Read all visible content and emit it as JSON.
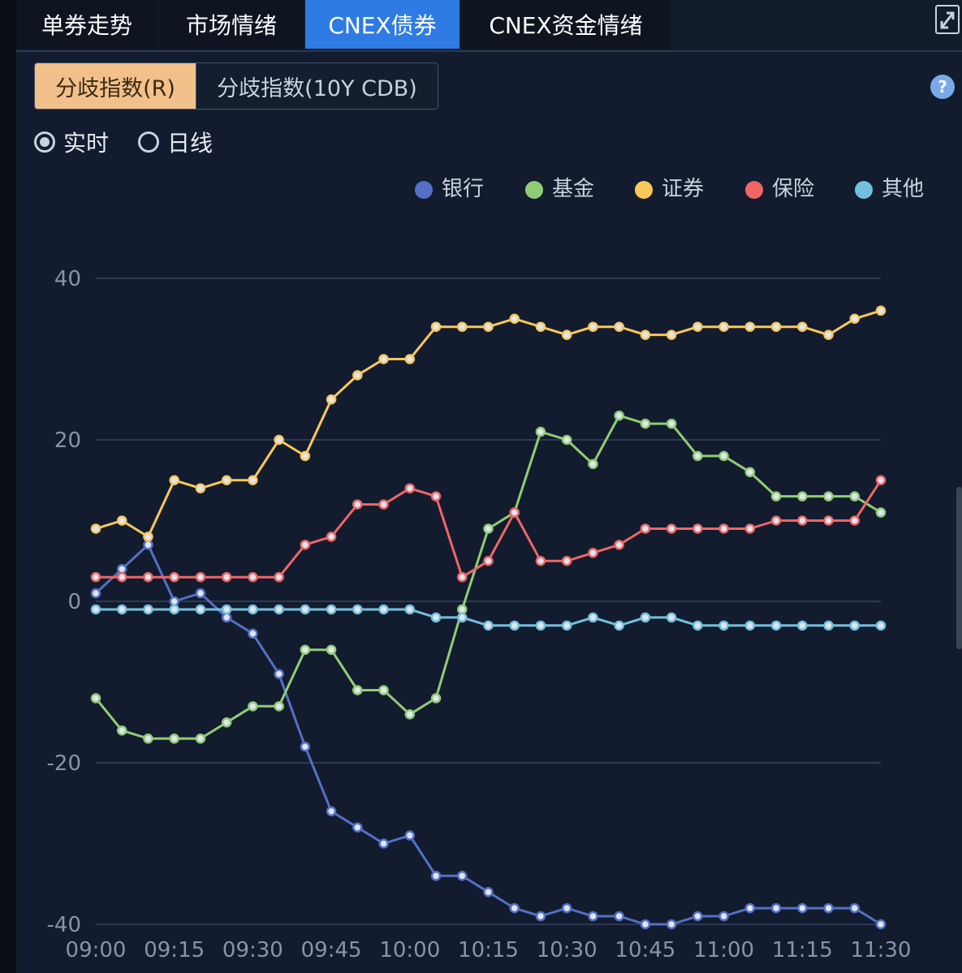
{
  "tabs": [
    {
      "label": "单券走势",
      "active": false
    },
    {
      "label": "市场情绪",
      "active": false
    },
    {
      "label": "CNEX债券",
      "active": true
    },
    {
      "label": "CNEX资金情绪",
      "active": false
    }
  ],
  "subtabs": [
    {
      "label": "分歧指数(R)",
      "active": true
    },
    {
      "label": "分歧指数(10Y CDB)",
      "active": false
    }
  ],
  "help_icon_text": "?",
  "radios": [
    {
      "label": "实时",
      "checked": true
    },
    {
      "label": "日线",
      "checked": false
    }
  ],
  "colors": {
    "accent": "#2d7be3",
    "subtab_active": "#f2c08a",
    "background": "#121c2e"
  },
  "chart_data": {
    "type": "line",
    "x": [
      "09:00",
      "09:05",
      "09:10",
      "09:15",
      "09:20",
      "09:25",
      "09:30",
      "09:35",
      "09:40",
      "09:45",
      "09:50",
      "09:55",
      "10:00",
      "10:05",
      "10:10",
      "10:15",
      "10:20",
      "10:25",
      "10:30",
      "10:35",
      "10:40",
      "10:45",
      "10:50",
      "10:55",
      "11:00",
      "11:05",
      "11:10",
      "11:15",
      "11:20",
      "11:25",
      "11:30"
    ],
    "xticks": [
      "09:00",
      "09:15",
      "09:30",
      "09:45",
      "10:00",
      "10:15",
      "10:30",
      "10:45",
      "11:00",
      "11:15",
      "11:30"
    ],
    "ylim": [
      -40,
      40
    ],
    "yticks": [
      -40,
      -20,
      0,
      20,
      40
    ],
    "grid": true,
    "legend_position": "top-right",
    "series": [
      {
        "name": "银行",
        "color": "#5470c6",
        "values": [
          1,
          4,
          7,
          0,
          1,
          -2,
          -4,
          -9,
          -18,
          -26,
          -28,
          -30,
          -29,
          -34,
          -34,
          -36,
          -38,
          -39,
          -38,
          -39,
          -39,
          -40,
          -40,
          -39,
          -39,
          -38,
          -38,
          -38,
          -38,
          -38,
          -40
        ]
      },
      {
        "name": "基金",
        "color": "#91cc75",
        "values": [
          -12,
          -16,
          -17,
          -17,
          -17,
          -15,
          -13,
          -13,
          -6,
          -6,
          -11,
          -11,
          -14,
          -12,
          -1,
          9,
          11,
          21,
          20,
          17,
          23,
          22,
          22,
          18,
          18,
          16,
          13,
          13,
          13,
          13,
          11
        ]
      },
      {
        "name": "证券",
        "color": "#fac858",
        "values": [
          9,
          10,
          8,
          15,
          14,
          15,
          15,
          20,
          18,
          25,
          28,
          30,
          30,
          34,
          34,
          34,
          35,
          34,
          33,
          34,
          34,
          33,
          33,
          34,
          34,
          34,
          34,
          34,
          33,
          35,
          36
        ]
      },
      {
        "name": "保险",
        "color": "#ee6666",
        "values": [
          3,
          3,
          3,
          3,
          3,
          3,
          3,
          3,
          7,
          8,
          12,
          12,
          14,
          13,
          3,
          5,
          11,
          5,
          5,
          6,
          7,
          9,
          9,
          9,
          9,
          9,
          10,
          10,
          10,
          10,
          15
        ]
      },
      {
        "name": "其他",
        "color": "#73c0de",
        "values": [
          -1,
          -1,
          -1,
          -1,
          -1,
          -1,
          -1,
          -1,
          -1,
          -1,
          -1,
          -1,
          -1,
          -2,
          -2,
          -3,
          -3,
          -3,
          -3,
          -2,
          -3,
          -2,
          -2,
          -3,
          -3,
          -3,
          -3,
          -3,
          -3,
          -3,
          -3
        ]
      }
    ]
  }
}
